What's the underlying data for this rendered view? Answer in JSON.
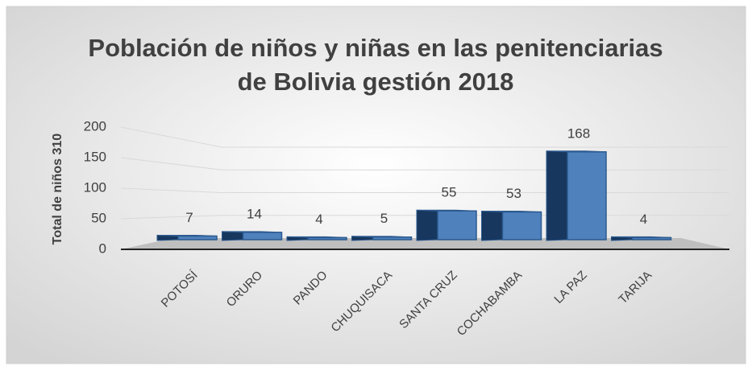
{
  "chart_data": {
    "type": "bar3d",
    "title": [
      "Población de niños y niñas en las penitenciarias",
      "de Bolivia gestión 2018"
    ],
    "y_label": "Total de niños  310",
    "categories": [
      "POTOSÍ",
      "ORURO",
      "PANDO",
      "CHUQUISACA",
      "SANTA CRUZ",
      "COCHABAMBA",
      "LA PAZ",
      "TARIJA"
    ],
    "values": [
      7,
      14,
      4,
      5,
      55,
      53,
      168,
      4
    ],
    "color": "#4f81bd",
    "ylim": [
      0,
      200
    ],
    "yticks": [
      0,
      50,
      100,
      150,
      200
    ],
    "grid": true
  }
}
